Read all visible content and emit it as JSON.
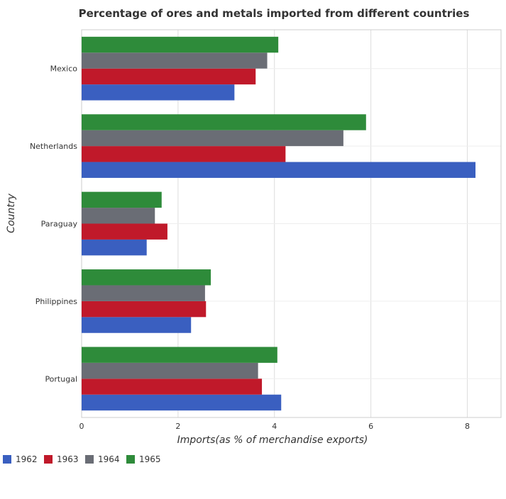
{
  "chart_data": {
    "type": "bar",
    "orientation": "horizontal",
    "title": "Percentage of ores and metals imported from different countries",
    "xlabel": "Imports(as % of merchandise exports)",
    "ylabel": "Country",
    "categories": [
      "Mexico",
      "Netherlands",
      "Paraguay",
      "Philippines",
      "Portugal"
    ],
    "xlim": [
      0,
      8.7
    ],
    "xticks": [
      "0",
      "2",
      "4",
      "6",
      "8"
    ],
    "xtick_values": [
      0,
      2,
      4,
      6,
      8
    ],
    "grid": true,
    "legend_position": "bottom-left",
    "series": [
      {
        "name": "1962",
        "color": "#3a5fc0",
        "values": [
          3.17,
          8.17,
          1.35,
          2.27,
          4.14
        ]
      },
      {
        "name": "1963",
        "color": "#c0192a",
        "values": [
          3.61,
          4.23,
          1.78,
          2.58,
          3.74
        ]
      },
      {
        "name": "1964",
        "color": "#6a6d75",
        "values": [
          3.85,
          5.43,
          1.52,
          2.56,
          3.66
        ]
      },
      {
        "name": "1965",
        "color": "#2e8b3a",
        "values": [
          4.08,
          5.9,
          1.66,
          2.68,
          4.06
        ]
      }
    ]
  }
}
